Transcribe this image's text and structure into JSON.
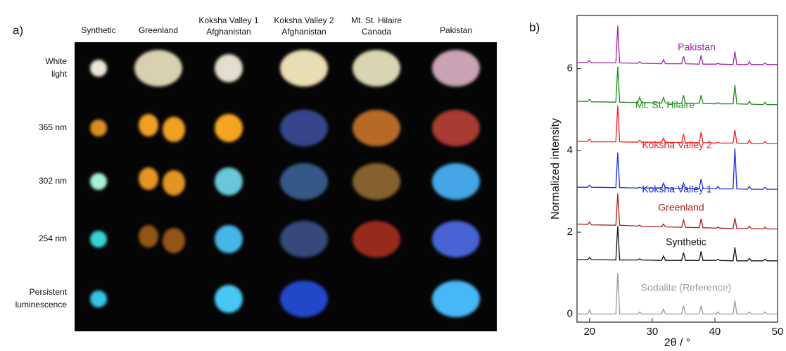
{
  "panel_labels": [
    "a)",
    "b)"
  ],
  "panel_a": {
    "columns": [
      [
        "Synthetic"
      ],
      [
        "Greenland"
      ],
      [
        "Koksha Valley 1",
        "Afghanistan"
      ],
      [
        "Koksha Valley 2",
        "Afghanistan"
      ],
      [
        "Mt. St. Hilaire",
        "Canada"
      ],
      [
        "Pakistan"
      ]
    ],
    "rows": [
      [
        "White",
        "light"
      ],
      [
        "365 nm"
      ],
      [
        "302 nm"
      ],
      [
        "254 nm"
      ],
      [
        "Persistent",
        "luminescence"
      ]
    ]
  },
  "chart_data": {
    "type": "line",
    "xlabel": "2θ / °",
    "ylabel": "Normalized intensity",
    "x": [
      18,
      19.7,
      20.0,
      20.3,
      24.2,
      24.5,
      24.8,
      27.7,
      28.0,
      28.3,
      31.5,
      31.8,
      32.1,
      34.7,
      35.0,
      35.3,
      37.5,
      37.8,
      38.1,
      40.2,
      40.5,
      40.8,
      42.9,
      43.2,
      43.5,
      45.2,
      45.5,
      45.8,
      47.7,
      48.0,
      48.3,
      50
    ],
    "xlim": [
      18,
      50
    ],
    "xticks": [
      20,
      30,
      40,
      50
    ],
    "ylim": [
      -0.2,
      7.3
    ],
    "yticks": [
      0,
      2,
      4,
      6
    ],
    "series": [
      {
        "name": "Sodalite (Reference)",
        "color": "#9a9a9a",
        "values": [
          0,
          0,
          0.1,
          0,
          0,
          1.0,
          0,
          0,
          0.05,
          0,
          0,
          0.12,
          0,
          0,
          0.2,
          0,
          0,
          0.2,
          0,
          0,
          0.05,
          0,
          0,
          0.33,
          0,
          0,
          0.05,
          0,
          0,
          0.05,
          0,
          0
        ]
      },
      {
        "name": "Synthetic",
        "color": "#111111",
        "values": [
          1.33,
          1.33,
          1.38,
          1.33,
          1.32,
          2.15,
          1.32,
          1.32,
          1.35,
          1.32,
          1.31,
          1.42,
          1.31,
          1.31,
          1.5,
          1.31,
          1.31,
          1.53,
          1.31,
          1.31,
          1.34,
          1.31,
          1.3,
          1.63,
          1.3,
          1.3,
          1.36,
          1.3,
          1.3,
          1.34,
          1.3,
          1.3
        ]
      },
      {
        "name": "Greenland",
        "color": "#b01c1c",
        "values": [
          2.2,
          2.19,
          2.25,
          2.18,
          2.17,
          2.95,
          2.17,
          2.15,
          2.17,
          2.14,
          2.13,
          2.2,
          2.13,
          2.12,
          2.3,
          2.12,
          2.11,
          2.33,
          2.11,
          2.1,
          2.12,
          2.1,
          2.09,
          2.35,
          2.09,
          2.09,
          2.15,
          2.09,
          2.08,
          2.12,
          2.08,
          2.08
        ]
      },
      {
        "name": "Koksha Valley 1",
        "color": "#1c2ee0",
        "values": [
          3.1,
          3.1,
          3.15,
          3.1,
          3.09,
          3.95,
          3.09,
          3.08,
          3.1,
          3.08,
          3.08,
          3.2,
          3.08,
          3.07,
          3.2,
          3.07,
          3.07,
          3.3,
          3.07,
          3.06,
          3.12,
          3.06,
          3.06,
          4.05,
          3.06,
          3.05,
          3.12,
          3.05,
          3.05,
          3.1,
          3.05,
          3.05
        ]
      },
      {
        "name": "Koksha Valley 2",
        "color": "#f02020",
        "values": [
          4.22,
          4.22,
          4.28,
          4.21,
          4.21,
          5.1,
          4.21,
          4.2,
          4.25,
          4.2,
          4.2,
          4.3,
          4.2,
          4.19,
          4.4,
          4.19,
          4.19,
          4.45,
          4.19,
          4.18,
          4.2,
          4.18,
          4.18,
          4.5,
          4.18,
          4.17,
          4.25,
          4.17,
          4.17,
          4.22,
          4.17,
          4.17
        ]
      },
      {
        "name": "Mt. St. Hilaire",
        "color": "#1c8c1c",
        "values": [
          5.2,
          5.2,
          5.25,
          5.19,
          5.18,
          6.05,
          5.18,
          5.17,
          5.3,
          5.17,
          5.16,
          5.3,
          5.16,
          5.15,
          5.35,
          5.15,
          5.15,
          5.35,
          5.15,
          5.14,
          5.17,
          5.14,
          5.14,
          5.6,
          5.14,
          5.13,
          5.2,
          5.13,
          5.12,
          5.18,
          5.12,
          5.12
        ]
      },
      {
        "name": "Pakistan",
        "color": "#a424a4",
        "values": [
          6.15,
          6.15,
          6.2,
          6.14,
          6.14,
          7.05,
          6.14,
          6.13,
          6.17,
          6.13,
          6.12,
          6.22,
          6.12,
          6.12,
          6.3,
          6.12,
          6.11,
          6.33,
          6.11,
          6.11,
          6.13,
          6.11,
          6.1,
          6.42,
          6.1,
          6.1,
          6.17,
          6.1,
          6.1,
          6.14,
          6.1,
          6.1
        ]
      }
    ]
  }
}
